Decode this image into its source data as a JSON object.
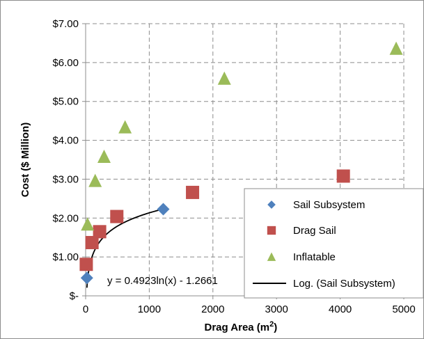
{
  "chart_data": {
    "type": "scatter",
    "title": "",
    "xlabel": "Drag Area (m",
    "xlabel_sup": "2",
    "xlabel_end": ")",
    "ylabel": "Cost ($ Million)",
    "xlim": [
      0,
      5000
    ],
    "ylim": [
      0,
      7
    ],
    "xticks": [
      0,
      1000,
      2000,
      3000,
      4000,
      5000
    ],
    "xtick_labels": [
      "0",
      "1000",
      "2000",
      "3000",
      "4000",
      "5000"
    ],
    "yticks": [
      0,
      1,
      2,
      3,
      4,
      5,
      6,
      7
    ],
    "ytick_labels": [
      "$-",
      "$1.00",
      "$2.00",
      "$3.00",
      "$4.00",
      "$5.00",
      "$6.00",
      "$7.00"
    ],
    "grid": true,
    "legend_position": "bottom-right",
    "series": [
      {
        "name": "Sail Subsystem",
        "marker": "diamond",
        "color": "#4f81bd",
        "points": [
          [
            20,
            0.46
          ],
          [
            1220,
            2.23
          ]
        ]
      },
      {
        "name": "Drag Sail",
        "marker": "square",
        "color": "#c0504d",
        "points": [
          [
            10,
            0.81
          ],
          [
            100,
            1.37
          ],
          [
            220,
            1.65
          ],
          [
            490,
            2.04
          ],
          [
            1680,
            2.66
          ],
          [
            4050,
            3.08
          ]
        ]
      },
      {
        "name": "Inflatable",
        "marker": "triangle",
        "color": "#9bbb59",
        "points": [
          [
            30,
            1.84
          ],
          [
            150,
            2.96
          ],
          [
            290,
            3.58
          ],
          [
            620,
            4.34
          ],
          [
            2180,
            5.59
          ],
          [
            4880,
            6.36
          ]
        ]
      }
    ],
    "trendline": {
      "name": "Log. (Sail Subsystem)",
      "type": "logarithmic",
      "a": 0.4923,
      "b": -1.2661,
      "x_range": [
        20,
        1220
      ],
      "color": "#000000",
      "equation_label": "y = 0.4923ln(x) - 1.2661"
    }
  }
}
